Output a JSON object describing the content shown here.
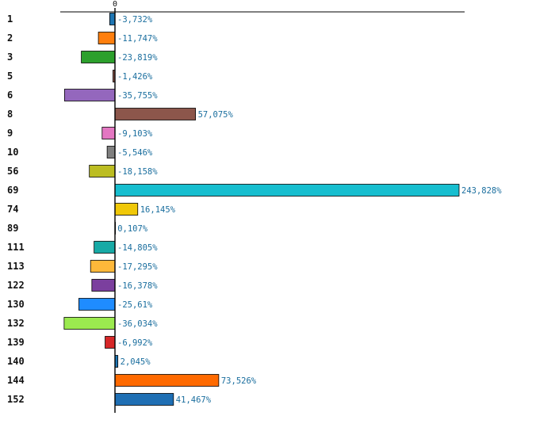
{
  "chart_data": {
    "type": "bar",
    "orientation": "horizontal",
    "title": "",
    "xlabel": "",
    "ylabel": "",
    "zero_tick_label": "0",
    "xlim": [
      -47,
      254
    ],
    "grid": false,
    "legend": "none",
    "categories": [
      "1",
      "2",
      "3",
      "5",
      "6",
      "8",
      "9",
      "10",
      "56",
      "69",
      "74",
      "89",
      "111",
      "113",
      "122",
      "130",
      "132",
      "139",
      "140",
      "144",
      "152"
    ],
    "values": [
      -3.732,
      -11.747,
      -23.819,
      -1.426,
      -35.755,
      57.075,
      -9.103,
      -5.546,
      -18.158,
      243.828,
      16.145,
      0.107,
      -14.805,
      -17.295,
      -16.378,
      -25.61,
      -36.034,
      -6.992,
      2.045,
      73.526,
      41.467
    ],
    "value_labels": [
      "-3,732%",
      "-11,747%",
      "-23,819%",
      "-1,426%",
      "-35,755%",
      "57,075%",
      "-9,103%",
      "-5,546%",
      "-18,158%",
      "243,828%",
      "16,145%",
      "0,107%",
      "-14,805%",
      "-17,295%",
      "-16,378%",
      "-25,61%",
      "-36,034%",
      "-6,992%",
      "2,045%",
      "73,526%",
      "41,467%"
    ],
    "colors": [
      "#1f77b4",
      "#ff7f0e",
      "#2ca02c",
      "#8c564b",
      "#9467bd",
      "#8c564b",
      "#e377c2",
      "#7f7f7f",
      "#bcbd22",
      "#17becf",
      "#f0c808",
      "#7fb0d0",
      "#17aaa6",
      "#fdb83a",
      "#7b3f9e",
      "#1f8cff",
      "#9bea4f",
      "#d62728",
      "#1f77b4",
      "#ff6a00",
      "#1f6fb4"
    ]
  }
}
